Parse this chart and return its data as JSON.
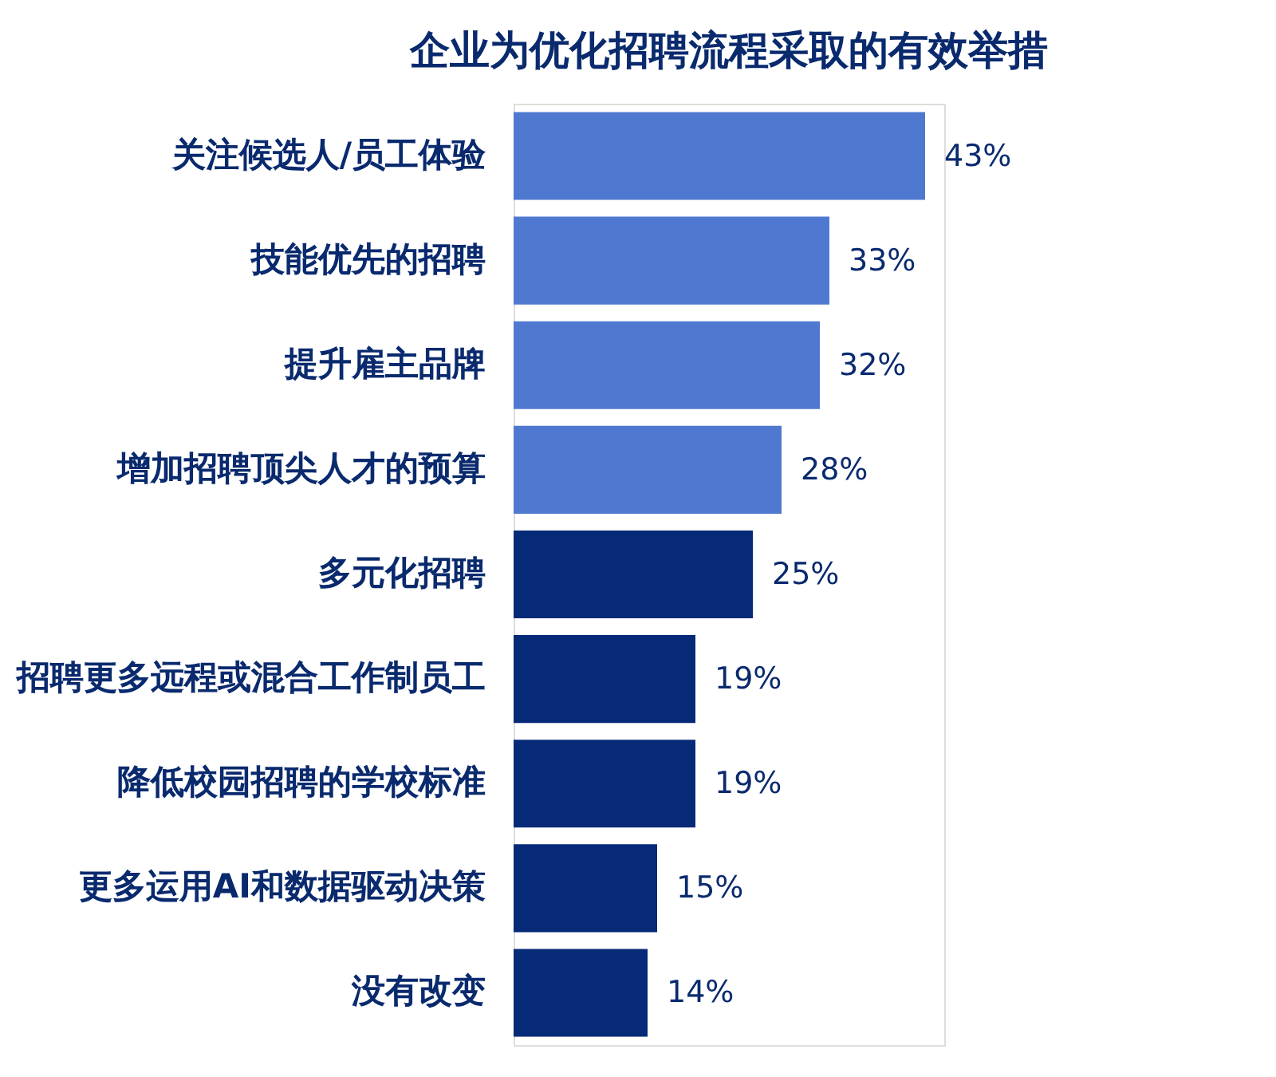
{
  "chart_data": {
    "type": "bar",
    "orientation": "horizontal",
    "title": "企业为优化招聘流程采取的有效举措",
    "categories": [
      "关注候选人/员工体验",
      "技能优先的招聘",
      "提升雇主品牌",
      "增加招聘顶尖人才的预算",
      "多元化招聘",
      "招聘更多远程或混合工作制员工",
      "降低校园招聘的学校标准",
      "更多运用AI和数据驱动决策",
      "没有改变"
    ],
    "values": [
      43,
      33,
      32,
      28,
      25,
      19,
      19,
      15,
      14
    ],
    "value_labels": [
      "43%",
      "33%",
      "32%",
      "28%",
      "25%",
      "19%",
      "19%",
      "15%",
      "14%"
    ],
    "colors": [
      "#4f79d0",
      "#4f79d0",
      "#4f79d0",
      "#4f79d0",
      "#062a78",
      "#062a78",
      "#062a78",
      "#062a78",
      "#062a78"
    ]
  }
}
